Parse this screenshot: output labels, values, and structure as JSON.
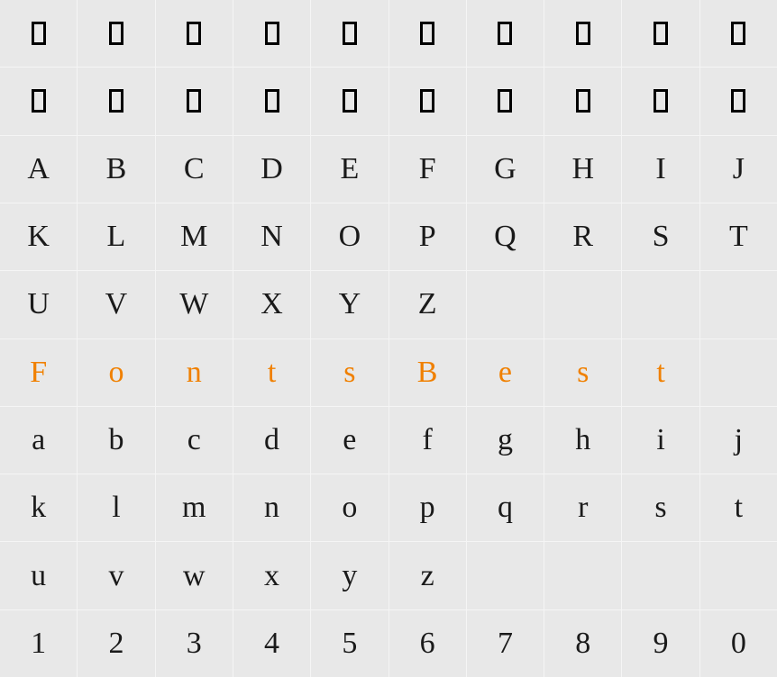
{
  "grid": {
    "cols": 10,
    "rows": 10,
    "background_color": "#e8e8e8",
    "gridline_color": "#f5f5f5",
    "default_text_color": "#1a1a1a",
    "highlight_color": "#f08000",
    "glyph_fontsize": 34,
    "font_family_cursive": "Brush Script / Cursive",
    "cells": [
      [
        {
          "type": "notdef"
        },
        {
          "type": "notdef"
        },
        {
          "type": "notdef"
        },
        {
          "type": "notdef"
        },
        {
          "type": "notdef"
        },
        {
          "type": "notdef"
        },
        {
          "type": "notdef"
        },
        {
          "type": "notdef"
        },
        {
          "type": "notdef"
        },
        {
          "type": "notdef"
        }
      ],
      [
        {
          "type": "notdef"
        },
        {
          "type": "notdef"
        },
        {
          "type": "notdef"
        },
        {
          "type": "notdef"
        },
        {
          "type": "notdef"
        },
        {
          "type": "notdef"
        },
        {
          "type": "notdef"
        },
        {
          "type": "notdef"
        },
        {
          "type": "notdef"
        },
        {
          "type": "notdef"
        }
      ],
      [
        {
          "type": "glyph",
          "char": "A"
        },
        {
          "type": "glyph",
          "char": "B"
        },
        {
          "type": "glyph",
          "char": "C"
        },
        {
          "type": "glyph",
          "char": "D"
        },
        {
          "type": "glyph",
          "char": "E"
        },
        {
          "type": "glyph",
          "char": "F"
        },
        {
          "type": "glyph",
          "char": "G"
        },
        {
          "type": "glyph",
          "char": "H"
        },
        {
          "type": "glyph",
          "char": "I"
        },
        {
          "type": "glyph",
          "char": "J"
        }
      ],
      [
        {
          "type": "glyph",
          "char": "K"
        },
        {
          "type": "glyph",
          "char": "L"
        },
        {
          "type": "glyph",
          "char": "M"
        },
        {
          "type": "glyph",
          "char": "N"
        },
        {
          "type": "glyph",
          "char": "O"
        },
        {
          "type": "glyph",
          "char": "P"
        },
        {
          "type": "glyph",
          "char": "Q"
        },
        {
          "type": "glyph",
          "char": "R"
        },
        {
          "type": "glyph",
          "char": "S"
        },
        {
          "type": "glyph",
          "char": "T"
        }
      ],
      [
        {
          "type": "glyph",
          "char": "U"
        },
        {
          "type": "glyph",
          "char": "V"
        },
        {
          "type": "glyph",
          "char": "W"
        },
        {
          "type": "glyph",
          "char": "X"
        },
        {
          "type": "glyph",
          "char": "Y"
        },
        {
          "type": "glyph",
          "char": "Z"
        },
        {
          "type": "empty"
        },
        {
          "type": "empty"
        },
        {
          "type": "empty"
        },
        {
          "type": "empty"
        }
      ],
      [
        {
          "type": "glyph",
          "char": "F",
          "highlight": true
        },
        {
          "type": "glyph",
          "char": "o",
          "highlight": true
        },
        {
          "type": "glyph",
          "char": "n",
          "highlight": true
        },
        {
          "type": "glyph",
          "char": "t",
          "highlight": true
        },
        {
          "type": "glyph",
          "char": "s",
          "highlight": true
        },
        {
          "type": "glyph",
          "char": "B",
          "highlight": true
        },
        {
          "type": "glyph",
          "char": "e",
          "highlight": true
        },
        {
          "type": "glyph",
          "char": "s",
          "highlight": true
        },
        {
          "type": "glyph",
          "char": "t",
          "highlight": true
        },
        {
          "type": "empty"
        }
      ],
      [
        {
          "type": "glyph",
          "char": "a"
        },
        {
          "type": "glyph",
          "char": "b"
        },
        {
          "type": "glyph",
          "char": "c"
        },
        {
          "type": "glyph",
          "char": "d"
        },
        {
          "type": "glyph",
          "char": "e"
        },
        {
          "type": "glyph",
          "char": "f"
        },
        {
          "type": "glyph",
          "char": "g"
        },
        {
          "type": "glyph",
          "char": "h"
        },
        {
          "type": "glyph",
          "char": "i"
        },
        {
          "type": "glyph",
          "char": "j"
        }
      ],
      [
        {
          "type": "glyph",
          "char": "k"
        },
        {
          "type": "glyph",
          "char": "l"
        },
        {
          "type": "glyph",
          "char": "m"
        },
        {
          "type": "glyph",
          "char": "n"
        },
        {
          "type": "glyph",
          "char": "o"
        },
        {
          "type": "glyph",
          "char": "p"
        },
        {
          "type": "glyph",
          "char": "q"
        },
        {
          "type": "glyph",
          "char": "r"
        },
        {
          "type": "glyph",
          "char": "s"
        },
        {
          "type": "glyph",
          "char": "t"
        }
      ],
      [
        {
          "type": "glyph",
          "char": "u"
        },
        {
          "type": "glyph",
          "char": "v"
        },
        {
          "type": "glyph",
          "char": "w"
        },
        {
          "type": "glyph",
          "char": "x"
        },
        {
          "type": "glyph",
          "char": "y"
        },
        {
          "type": "glyph",
          "char": "z"
        },
        {
          "type": "empty"
        },
        {
          "type": "empty"
        },
        {
          "type": "empty"
        },
        {
          "type": "empty"
        }
      ],
      [
        {
          "type": "glyph",
          "char": "1"
        },
        {
          "type": "glyph",
          "char": "2"
        },
        {
          "type": "glyph",
          "char": "3"
        },
        {
          "type": "glyph",
          "char": "4"
        },
        {
          "type": "glyph",
          "char": "5"
        },
        {
          "type": "glyph",
          "char": "6"
        },
        {
          "type": "glyph",
          "char": "7"
        },
        {
          "type": "glyph",
          "char": "8"
        },
        {
          "type": "glyph",
          "char": "9"
        },
        {
          "type": "glyph",
          "char": "0"
        }
      ]
    ]
  }
}
